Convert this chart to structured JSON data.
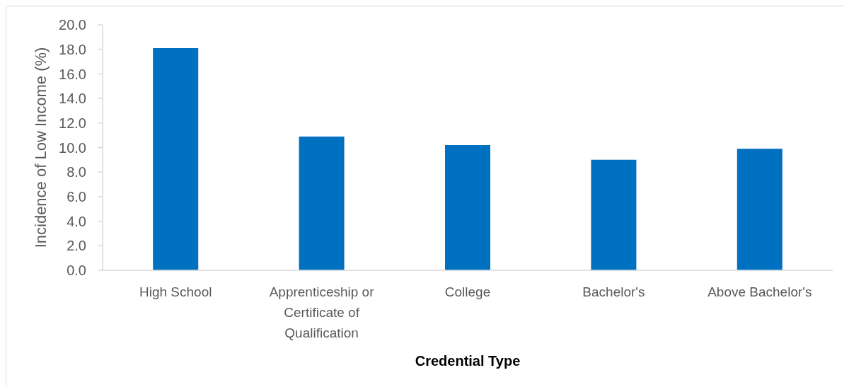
{
  "chart_data": {
    "type": "bar",
    "xlabel": "Credential Type",
    "ylabel": "Incidence of Low Income (%)",
    "categories": [
      "High School",
      "Apprenticeship or Certificate of Qualification",
      "College",
      "Bachelor's",
      "Above Bachelor's"
    ],
    "values": [
      18.1,
      10.9,
      10.2,
      9.0,
      9.9
    ],
    "color": "#0070c0",
    "ylim": [
      0,
      20
    ],
    "yticks": [
      {
        "value": 0,
        "label": "0.0"
      },
      {
        "value": 2,
        "label": "2.0"
      },
      {
        "value": 4,
        "label": "4.0"
      },
      {
        "value": 6,
        "label": "6.0"
      },
      {
        "value": 8,
        "label": "8.0"
      },
      {
        "value": 10,
        "label": "10.0"
      },
      {
        "value": 12,
        "label": "12.0"
      },
      {
        "value": 14,
        "label": "14.0"
      },
      {
        "value": 16,
        "label": "16.0"
      },
      {
        "value": 18,
        "label": "18.0"
      },
      {
        "value": 20,
        "label": "20.0"
      }
    ]
  }
}
